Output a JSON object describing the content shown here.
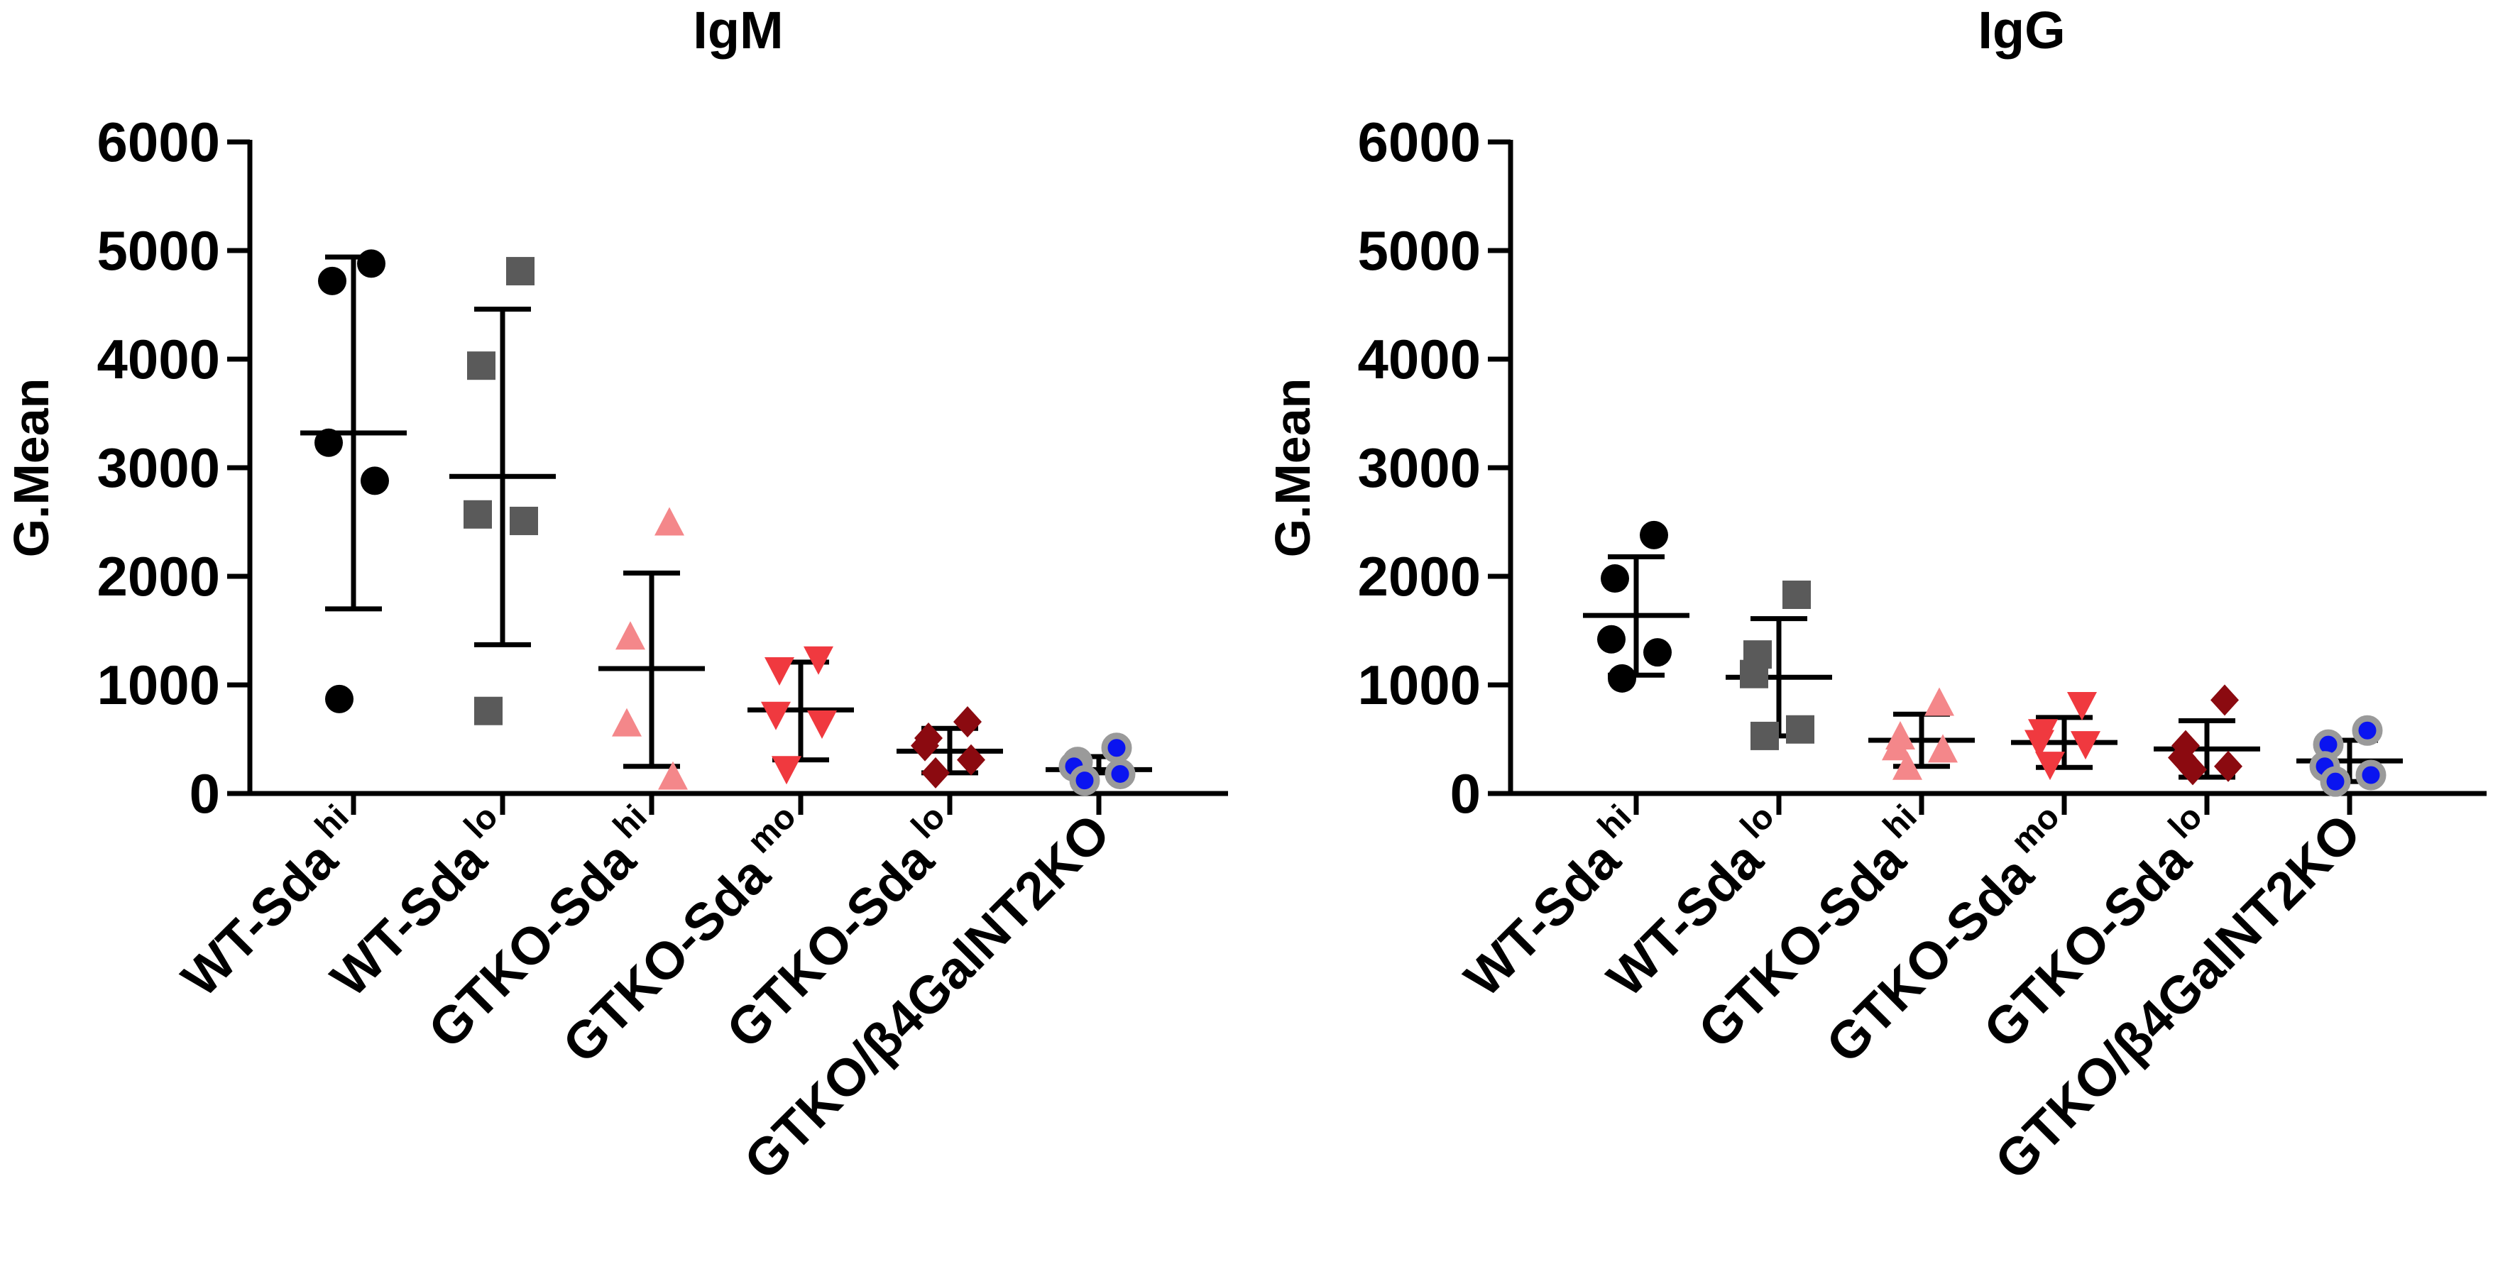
{
  "chart_data": [
    {
      "type": "scatter",
      "title": "IgM",
      "ylabel": "G.Mean",
      "xlabel": "",
      "ylim": [
        0,
        6000
      ],
      "yticks": [
        "0",
        "1000",
        "2000",
        "3000",
        "4000",
        "5000",
        "6000"
      ],
      "groups": [
        {
          "label": "WT-Sda",
          "sup": "hi",
          "color": "#000000",
          "edge": "#000000",
          "marker": "circle",
          "values": [
            4880,
            4720,
            3230,
            2880,
            870
          ],
          "mean": 3320,
          "err_low": 1700,
          "err_high": 4940
        },
        {
          "label": "WT-Sda",
          "sup": "lo",
          "color": "#5a5a5a",
          "edge": "#5a5a5a",
          "marker": "square",
          "values": [
            4810,
            3940,
            2570,
            2510,
            760
          ],
          "mean": 2920,
          "err_low": 1370,
          "err_high": 4460
        },
        {
          "label": "GTKO-Sda",
          "sup": "hi",
          "color": "#f4878a",
          "edge": "#f4878a",
          "marker": "triangle-up",
          "values": [
            2480,
            1430,
            630,
            140
          ],
          "mean": 1150,
          "err_low": 250,
          "err_high": 2030
        },
        {
          "label": "GTKO-Sda",
          "sup": "mo",
          "color": "#f0393f",
          "edge": "#f0393f",
          "marker": "triangle-down",
          "values": [
            1250,
            1150,
            740,
            660,
            240
          ],
          "mean": 770,
          "err_low": 310,
          "err_high": 1210
        },
        {
          "label": "GTKO-Sda",
          "sup": "lo",
          "color": "#8b0a10",
          "edge": "#8b0a10",
          "marker": "diamond",
          "values": [
            660,
            510,
            440,
            310,
            190
          ],
          "mean": 390,
          "err_low": 190,
          "err_high": 600
        },
        {
          "label": "GTKO/β4GalNT2KO",
          "sup": "",
          "color": "#0a14f0",
          "edge": "#9a9a9a",
          "marker": "circle-ring",
          "values": [
            420,
            290,
            250,
            180,
            120
          ],
          "mean": 220,
          "err_low": 190,
          "err_high": 340
        }
      ]
    },
    {
      "type": "scatter",
      "title": "IgG",
      "ylabel": "G.Mean",
      "xlabel": "",
      "ylim": [
        0,
        6000
      ],
      "yticks": [
        "0",
        "1000",
        "2000",
        "3000",
        "4000",
        "5000",
        "6000"
      ],
      "groups": [
        {
          "label": "WT-Sda",
          "sup": "hi",
          "color": "#000000",
          "edge": "#000000",
          "marker": "circle",
          "values": [
            2380,
            1980,
            1420,
            1300,
            1060
          ],
          "mean": 1640,
          "err_low": 1090,
          "err_high": 2180
        },
        {
          "label": "WT-Sda",
          "sup": "lo",
          "color": "#5a5a5a",
          "edge": "#5a5a5a",
          "marker": "square",
          "values": [
            1830,
            1280,
            1100,
            590,
            530
          ],
          "mean": 1070,
          "err_low": 530,
          "err_high": 1610
        },
        {
          "label": "GTKO-Sda",
          "sup": "hi",
          "color": "#f4878a",
          "edge": "#f4878a",
          "marker": "triangle-up",
          "values": [
            820,
            510,
            410,
            390,
            230
          ],
          "mean": 490,
          "err_low": 250,
          "err_high": 730
        },
        {
          "label": "GTKO-Sda",
          "sup": "mo",
          "color": "#f0393f",
          "edge": "#f0393f",
          "marker": "triangle-down",
          "values": [
            830,
            580,
            480,
            470,
            280
          ],
          "mean": 470,
          "err_low": 240,
          "err_high": 700
        },
        {
          "label": "GTKO-Sda",
          "sup": "lo",
          "color": "#8b0a10",
          "edge": "#8b0a10",
          "marker": "diamond",
          "values": [
            860,
            440,
            330,
            250,
            220
          ],
          "mean": 410,
          "err_low": 150,
          "err_high": 670
        },
        {
          "label": "GTKO/β4GalNT2KO",
          "sup": "",
          "color": "#0a14f0",
          "edge": "#9a9a9a",
          "marker": "circle-ring",
          "values": [
            580,
            450,
            250,
            170,
            110
          ],
          "mean": 300,
          "err_low": 110,
          "err_high": 490
        }
      ]
    }
  ]
}
